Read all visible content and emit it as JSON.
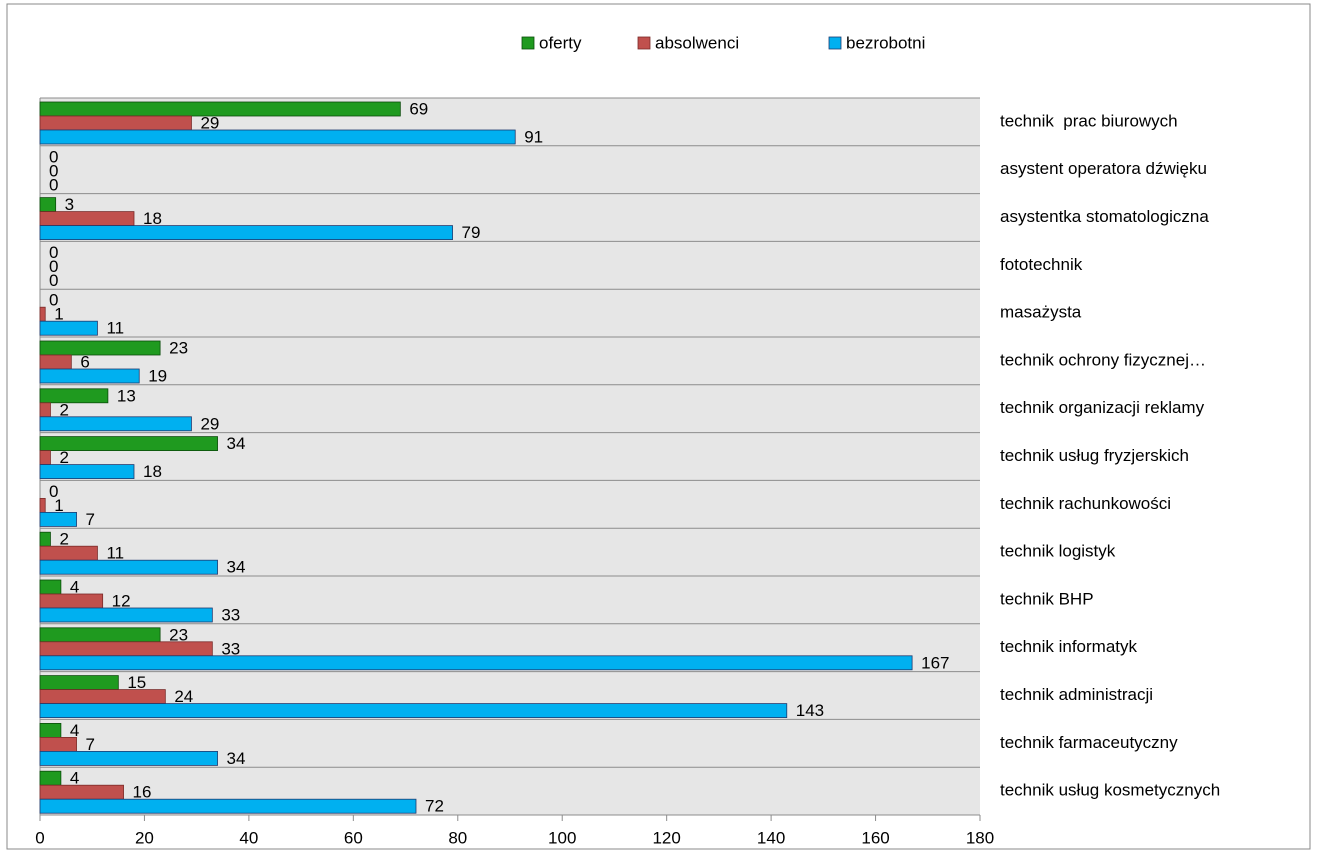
{
  "chart_data": {
    "type": "barh",
    "categories": [
      "technik  prac biurowych",
      "asystent operatora dźwięku",
      "asystentka stomatologiczna",
      "fototechnik",
      "masażysta",
      "technik ochrony fizycznej…",
      "technik organizacji reklamy",
      "technik usług fryzjerskich",
      "technik rachunkowości",
      "technik logistyk",
      "technik BHP",
      "technik informatyk",
      "technik administracji",
      "technik farmaceutyczny",
      "technik usług kosmetycznych"
    ],
    "series": [
      {
        "name": "oferty",
        "color": "#1f9a1f",
        "values": [
          69,
          0,
          3,
          0,
          0,
          23,
          13,
          34,
          0,
          2,
          4,
          23,
          15,
          4,
          4
        ]
      },
      {
        "name": "absolwenci",
        "color": "#c0504d",
        "values": [
          29,
          0,
          18,
          0,
          1,
          6,
          2,
          2,
          1,
          11,
          12,
          33,
          24,
          7,
          16
        ]
      },
      {
        "name": "bezrobotni",
        "color": "#00b0f0",
        "values": [
          91,
          0,
          79,
          0,
          11,
          19,
          29,
          18,
          7,
          34,
          33,
          167,
          143,
          34,
          72
        ]
      }
    ],
    "xlim": [
      0,
      180
    ],
    "xticks": [
      0,
      20,
      40,
      60,
      80,
      100,
      120,
      140,
      160,
      180
    ],
    "legend": "top"
  }
}
